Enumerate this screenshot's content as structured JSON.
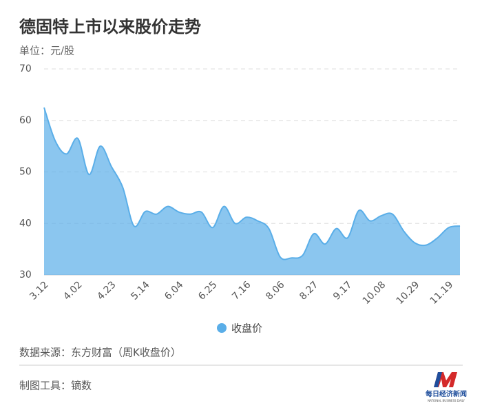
{
  "chart_data": {
    "type": "area",
    "title": "德固特上市以来股价走势",
    "subtitle": "单位：元/股",
    "categories": [
      "3.12",
      null,
      null,
      "4.02",
      null,
      null,
      "4.23",
      null,
      null,
      "5.14",
      null,
      null,
      "6.04",
      null,
      null,
      "6.25",
      null,
      null,
      "7.16",
      null,
      null,
      "8.06",
      null,
      null,
      "8.27",
      null,
      null,
      "9.17",
      null,
      null,
      "10.08",
      null,
      null,
      "10.29",
      null,
      null,
      "11.19",
      null
    ],
    "series": [
      {
        "name": "收盘价",
        "color": "#5aaee8",
        "values": [
          62.5,
          56,
          53.5,
          56.5,
          49.5,
          55,
          51,
          47,
          39.5,
          42.3,
          41.8,
          43.3,
          42.2,
          41.8,
          42.2,
          39.2,
          43.3,
          40,
          41.2,
          40.5,
          39,
          33.5,
          33.3,
          33.8,
          38,
          36,
          39,
          37.2,
          42.5,
          40.5,
          41.5,
          41.8,
          38.5,
          36.2,
          35.8,
          37.2,
          39.2,
          39.5
        ]
      }
    ],
    "ylim": [
      30,
      70
    ],
    "yticks": [
      30,
      40,
      50,
      60,
      70
    ],
    "grid": true,
    "legend": "bottom"
  },
  "footer": {
    "source": "数据来源：东方财富（周K收盘价）",
    "tool": "制图工具：镝数",
    "logo": "每日经济新闻",
    "logo_en": "NATIONAL BUSINESS DAILY"
  }
}
